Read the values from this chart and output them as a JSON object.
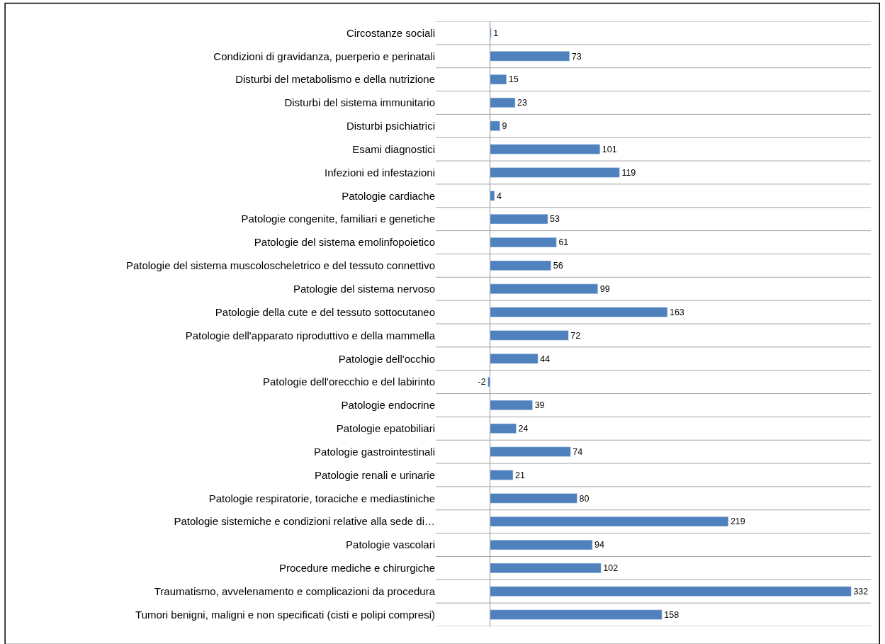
{
  "chart_data": {
    "type": "bar",
    "orientation": "horizontal",
    "categories": [
      "Circostanze sociali",
      "Condizioni di gravidanza, puerperio e perinatali",
      "Disturbi del metabolismo e della nutrizione",
      "Disturbi del sistema immunitario",
      "Disturbi psichiatrici",
      "Esami diagnostici",
      "Infezioni ed infestazioni",
      "Patologie cardiache",
      "Patologie congenite, familiari e genetiche",
      "Patologie del sistema emolinfopoietico",
      "Patologie del sistema muscoloscheletrico e del tessuto connettivo",
      "Patologie del sistema nervoso",
      "Patologie della cute e del tessuto sottocutaneo",
      "Patologie dell'apparato riproduttivo e della mammella",
      "Patologie dell'occhio",
      "Patologie dell'orecchio e del labirinto",
      "Patologie endocrine",
      "Patologie epatobiliari",
      "Patologie gastrointestinali",
      "Patologie renali e urinarie",
      "Patologie respiratorie, toraciche e mediastiniche",
      "Patologie sistemiche e condizioni relative alla sede di…",
      "Patologie vascolari",
      "Procedure mediche e chirurgiche",
      "Traumatismo, avvelenamento e complicazioni da procedura",
      "Tumori benigni, maligni e non specificati (cisti e polipi compresi)"
    ],
    "values": [
      1,
      73,
      15,
      23,
      9,
      101,
      119,
      4,
      53,
      61,
      56,
      99,
      163,
      72,
      44,
      -2,
      39,
      24,
      74,
      21,
      80,
      219,
      94,
      102,
      332,
      158
    ],
    "color": "#4f81bd",
    "xlim": [
      -50,
      350
    ],
    "data_labels": true,
    "grid": "y",
    "tick_labels": "y",
    "legend": false
  }
}
